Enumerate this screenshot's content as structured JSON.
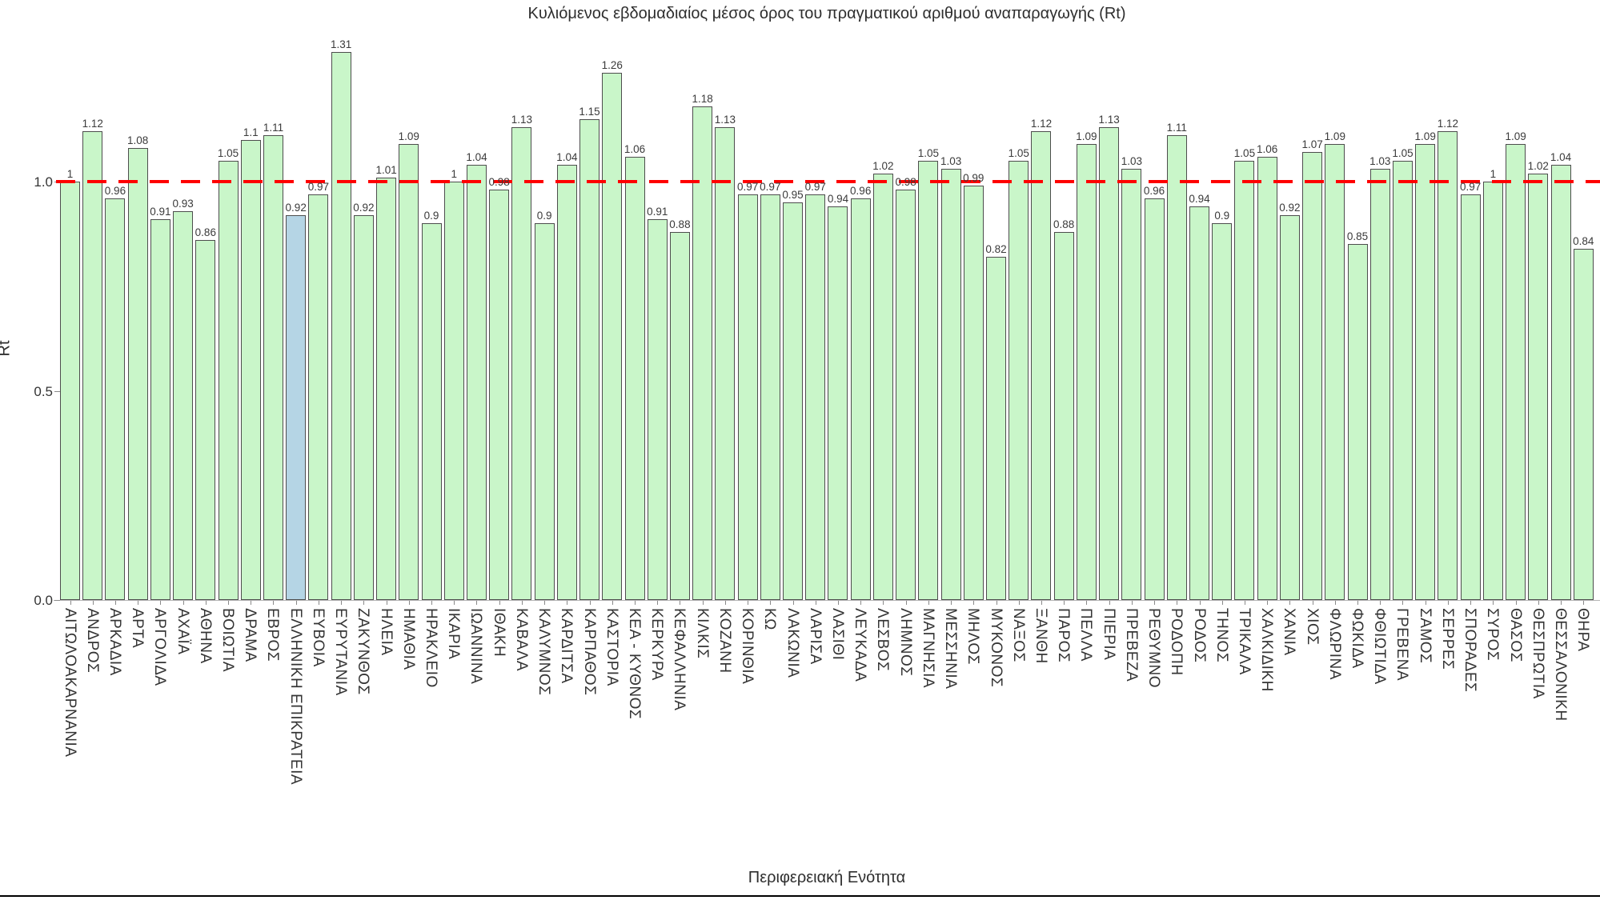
{
  "chart_data": {
    "type": "bar",
    "title": "Κυλιόμενος εβδομαδιαίος μέσος όρος του πραγματικού αριθμού αναπαραγωγής (Rt)",
    "xlabel": "Περιφερειακή Ενότητα",
    "ylabel": "Rt",
    "ylim": [
      0,
      1.4
    ],
    "grid": false,
    "legend": "none",
    "yticks": {
      "values": [
        1.0,
        0.5,
        0.0
      ],
      "labels": [
        "1.0",
        "0.5",
        "0.0"
      ]
    },
    "reference_line": {
      "value": 1.0,
      "style": "dashed",
      "color": "#ff0000"
    },
    "bar_fill_color": "#c9f6c9",
    "bar_border_color": "#4d4d4d",
    "highlight_fill_color": "#b5d5e5",
    "highlight_index": 10,
    "highlight_category": "ΕΛΛΗΝΙΚΗ ΕΠΙΚΡΑΤΕΙΑ",
    "categories": [
      "ΑΙΤΩΛΟΑΚΑΡΝΑΝΙΑ",
      "ΑΝΔΡΟΣ",
      "ΑΡΚΑΔΙΑ",
      "ΑΡΤΑ",
      "ΑΡΓΟΛΙΔΑ",
      "ΑΧΑΪΑ",
      "ΑΘΗΝΑ",
      "ΒΟΙΩΤΙΑ",
      "ΔΡΑΜΑ",
      "ΕΒΡΟΣ",
      "ΕΛΛΗΝΙΚΗ ΕΠΙΚΡΑΤΕΙΑ",
      "ΕΥΒΟΙΑ",
      "ΕΥΡΥΤΑΝΙΑ",
      "ΖΑΚΥΝΘΟΣ",
      "ΗΛΕΙΑ",
      "ΗΜΑΘΙΑ",
      "ΗΡΑΚΛΕΙΟ",
      "ΙΚΑΡΙΑ",
      "ΙΩΑΝΝΙΝΑ",
      "ΙΘΑΚΗ",
      "ΚΑΒΑΛΑ",
      "ΚΑΛΥΜΝΟΣ",
      "ΚΑΡΔΙΤΣΑ",
      "ΚΑΡΠΑΘΟΣ",
      "ΚΑΣΤΟΡΙΑ",
      "ΚΕΑ - ΚΥΘΝΟΣ",
      "ΚΕΡΚΥΡΑ",
      "ΚΕΦΑΛΛΗΝΙΑ",
      "ΚΙΛΚΙΣ",
      "ΚΟΖΑΝΗ",
      "ΚΟΡΙΝΘΙΑ",
      "ΚΩ",
      "ΛΑΚΩΝΙΑ",
      "ΛΑΡΙΣΑ",
      "ΛΑΣΙΘΙ",
      "ΛΕΥΚΑΔΑ",
      "ΛΕΣΒΟΣ",
      "ΛΗΜΝΟΣ",
      "ΜΑΓΝΗΣΙΑ",
      "ΜΕΣΣΗΝΙΑ",
      "ΜΗΛΟΣ",
      "ΜΥΚΟΝΟΣ",
      "ΝΑΞΟΣ",
      "ΞΑΝΘΗ",
      "ΠΑΡΟΣ",
      "ΠΕΛΛΑ",
      "ΠΙΕΡΙΑ",
      "ΠΡΕΒΕΖΑ",
      "ΡΕΘΥΜΝΟ",
      "ΡΟΔΟΠΗ",
      "ΡΟΔΟΣ",
      "ΤΗΝΟΣ",
      "ΤΡΙΚΑΛΑ",
      "ΧΑΛΚΙΔΙΚΗ",
      "ΧΑΝΙΑ",
      "ΧΙΟΣ",
      "ΦΛΩΡΙΝΑ",
      "ΦΩΚΙΔΑ",
      "ΦΘΙΩΤΙΔΑ",
      "ΓΡΕΒΕΝΑ",
      "ΣΑΜΟΣ",
      "ΣΕΡΡΕΣ",
      "ΣΠΟΡΑΔΕΣ",
      "ΣΥΡΟΣ",
      "ΘΑΣΟΣ",
      "ΘΕΣΠΡΩΤΙΑ",
      "ΘΕΣΣΑΛΟΝΙΚΗ",
      "ΘΗΡΑ"
    ],
    "values": [
      1,
      1.12,
      0.96,
      1.08,
      0.91,
      0.93,
      0.86,
      1.05,
      1.1,
      1.11,
      0.92,
      0.97,
      1.31,
      0.92,
      1.01,
      1.09,
      0.9,
      1,
      1.04,
      0.98,
      1.13,
      0.9,
      1.04,
      1.15,
      1.26,
      1.06,
      0.91,
      0.88,
      1.18,
      1.13,
      0.97,
      0.97,
      0.95,
      0.97,
      0.94,
      0.96,
      1.02,
      0.98,
      1.05,
      1.03,
      0.99,
      0.82,
      1.05,
      1.12,
      0.88,
      1.09,
      1.13,
      1.03,
      0.96,
      1.11,
      0.94,
      0.9,
      1.05,
      1.06,
      0.92,
      1.07,
      1.09,
      0.85,
      1.03,
      1.05,
      1.09,
      1.12,
      0.97,
      1,
      1.09,
      1.02,
      1.04,
      0.84
    ]
  }
}
